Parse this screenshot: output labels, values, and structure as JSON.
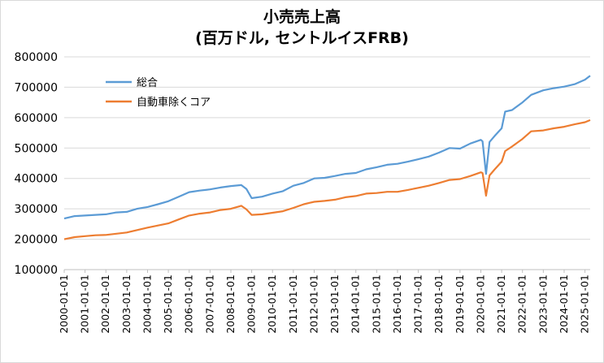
{
  "chart_data": {
    "type": "line",
    "title": "小売売上高",
    "subtitle": "(百万ドル, セントルイスFRB)",
    "xlabel": "",
    "ylabel": "",
    "ylim": [
      100000,
      800000
    ],
    "yticks": [
      "100000",
      "200000",
      "300000",
      "400000",
      "500000",
      "600000",
      "700000",
      "800000"
    ],
    "xticks": [
      "2000-01-01",
      "2001-01-01",
      "2002-01-01",
      "2003-01-01",
      "2004-01-01",
      "2005-01-01",
      "2006-01-01",
      "2007-01-01",
      "2008-01-01",
      "2009-01-01",
      "2010-01-01",
      "2011-01-01",
      "2012-01-01",
      "2013-01-01",
      "2014-01-01",
      "2015-01-01",
      "2016-01-01",
      "2017-01-01",
      "2018-01-01",
      "2019-01-01",
      "2020-01-01",
      "2021-01-01",
      "2022-01-01",
      "2023-01-01",
      "2024-01-01",
      "2025-01-01"
    ],
    "grid": true,
    "legend_position": "top-left",
    "series": [
      {
        "name": "総合",
        "color": "#5b9bd5",
        "points": [
          [
            "2000-01",
            268000
          ],
          [
            "2000-07",
            276000
          ],
          [
            "2001-01",
            278000
          ],
          [
            "2001-07",
            280000
          ],
          [
            "2002-01",
            282000
          ],
          [
            "2002-07",
            288000
          ],
          [
            "2003-01",
            290000
          ],
          [
            "2003-07",
            300000
          ],
          [
            "2004-01",
            306000
          ],
          [
            "2004-07",
            315000
          ],
          [
            "2005-01",
            325000
          ],
          [
            "2005-07",
            340000
          ],
          [
            "2006-01",
            355000
          ],
          [
            "2006-07",
            360000
          ],
          [
            "2007-01",
            364000
          ],
          [
            "2007-07",
            370000
          ],
          [
            "2008-01",
            375000
          ],
          [
            "2008-07",
            378000
          ],
          [
            "2008-10",
            365000
          ],
          [
            "2009-01",
            335000
          ],
          [
            "2009-07",
            340000
          ],
          [
            "2010-01",
            350000
          ],
          [
            "2010-07",
            358000
          ],
          [
            "2011-01",
            376000
          ],
          [
            "2011-07",
            385000
          ],
          [
            "2012-01",
            400000
          ],
          [
            "2012-07",
            402000
          ],
          [
            "2013-01",
            408000
          ],
          [
            "2013-07",
            415000
          ],
          [
            "2014-01",
            418000
          ],
          [
            "2014-07",
            430000
          ],
          [
            "2015-01",
            437000
          ],
          [
            "2015-07",
            445000
          ],
          [
            "2016-01",
            448000
          ],
          [
            "2016-07",
            455000
          ],
          [
            "2017-01",
            463000
          ],
          [
            "2017-07",
            472000
          ],
          [
            "2018-01",
            485000
          ],
          [
            "2018-07",
            500000
          ],
          [
            "2019-01",
            498000
          ],
          [
            "2019-07",
            515000
          ],
          [
            "2020-01",
            527000
          ],
          [
            "2020-02",
            522000
          ],
          [
            "2020-04",
            415000
          ],
          [
            "2020-06",
            520000
          ],
          [
            "2020-09",
            540000
          ],
          [
            "2021-01",
            565000
          ],
          [
            "2021-03",
            620000
          ],
          [
            "2021-07",
            625000
          ],
          [
            "2022-01",
            650000
          ],
          [
            "2022-06",
            675000
          ],
          [
            "2023-01",
            690000
          ],
          [
            "2023-07",
            697000
          ],
          [
            "2024-01",
            702000
          ],
          [
            "2024-07",
            710000
          ],
          [
            "2025-01",
            725000
          ],
          [
            "2025-04",
            738000
          ]
        ]
      },
      {
        "name": "自動車除くコア",
        "color": "#ed7d31",
        "points": [
          [
            "2000-01",
            200000
          ],
          [
            "2000-07",
            207000
          ],
          [
            "2001-01",
            210000
          ],
          [
            "2001-07",
            213000
          ],
          [
            "2002-01",
            214000
          ],
          [
            "2002-07",
            218000
          ],
          [
            "2003-01",
            222000
          ],
          [
            "2003-07",
            230000
          ],
          [
            "2004-01",
            238000
          ],
          [
            "2004-07",
            245000
          ],
          [
            "2005-01",
            252000
          ],
          [
            "2005-07",
            265000
          ],
          [
            "2006-01",
            278000
          ],
          [
            "2006-07",
            284000
          ],
          [
            "2007-01",
            288000
          ],
          [
            "2007-07",
            296000
          ],
          [
            "2008-01",
            300000
          ],
          [
            "2008-07",
            310000
          ],
          [
            "2008-10",
            298000
          ],
          [
            "2009-01",
            280000
          ],
          [
            "2009-07",
            282000
          ],
          [
            "2010-01",
            287000
          ],
          [
            "2010-07",
            292000
          ],
          [
            "2011-01",
            303000
          ],
          [
            "2011-07",
            315000
          ],
          [
            "2012-01",
            323000
          ],
          [
            "2012-07",
            326000
          ],
          [
            "2013-01",
            330000
          ],
          [
            "2013-07",
            338000
          ],
          [
            "2014-01",
            342000
          ],
          [
            "2014-07",
            350000
          ],
          [
            "2015-01",
            352000
          ],
          [
            "2015-07",
            356000
          ],
          [
            "2016-01",
            356000
          ],
          [
            "2016-07",
            362000
          ],
          [
            "2017-01",
            369000
          ],
          [
            "2017-07",
            376000
          ],
          [
            "2018-01",
            385000
          ],
          [
            "2018-07",
            395000
          ],
          [
            "2019-01",
            398000
          ],
          [
            "2019-07",
            408000
          ],
          [
            "2020-01",
            420000
          ],
          [
            "2020-02",
            418000
          ],
          [
            "2020-04",
            343000
          ],
          [
            "2020-06",
            410000
          ],
          [
            "2020-09",
            430000
          ],
          [
            "2021-01",
            455000
          ],
          [
            "2021-03",
            490000
          ],
          [
            "2021-07",
            505000
          ],
          [
            "2022-01",
            530000
          ],
          [
            "2022-06",
            555000
          ],
          [
            "2023-01",
            558000
          ],
          [
            "2023-07",
            565000
          ],
          [
            "2024-01",
            570000
          ],
          [
            "2024-07",
            578000
          ],
          [
            "2025-01",
            585000
          ],
          [
            "2025-04",
            592000
          ]
        ]
      }
    ]
  }
}
